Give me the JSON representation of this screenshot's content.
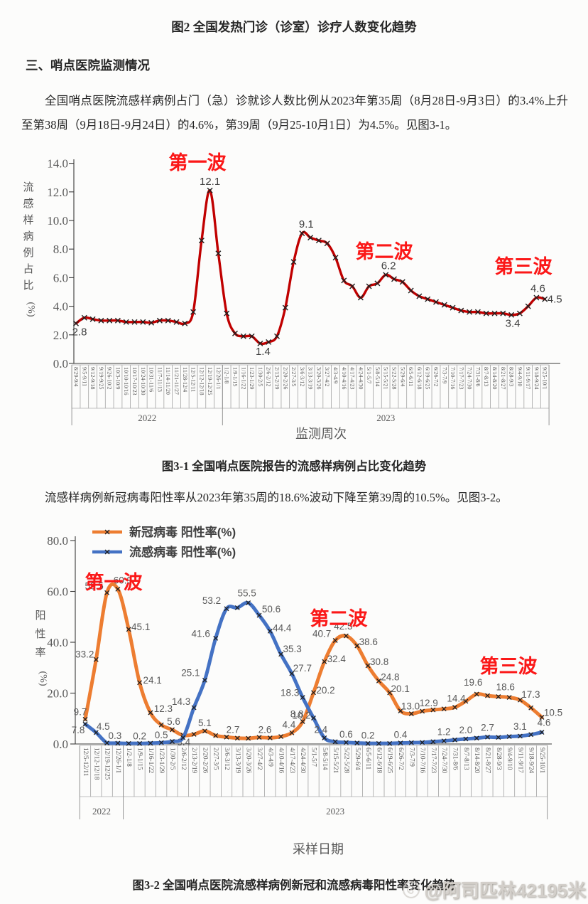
{
  "page": {
    "fig2_caption": "图2 全国发热门诊（诊室）诊疗人数变化趋势",
    "section_heading": "三、哨点医院监测情况",
    "para1": "全国哨点医院流感样病例占门（急）诊就诊人数比例从2023年第35周（8月28日-9月3日）的3.4%上升至第38周（9月18日-9月24日）的4.6%，第39周（9月25-10月1日）为4.5%。见图3-1。",
    "fig31_caption": "图3-1 全国哨点医院报告的流感样病例占比变化趋势",
    "para2": "流感样病例新冠病毒阳性率从2023年第35周的18.6%波动下降至第39周的10.5%。见图3-2。",
    "fig32_caption": "图3-2 全国哨点医院流感样病例新冠和流感病毒阳性率变化趋势",
    "watermark": "@阿司匹林42195米"
  },
  "chart_data": [
    {
      "id": "ili-percent-chart",
      "type": "line",
      "title": "",
      "xlabel": "监测周次",
      "ylabel": "流感样病例占比(%)",
      "ylim": [
        0,
        14
      ],
      "grid": false,
      "legend_position": "none",
      "ytick_vals": [
        0,
        2,
        4,
        6,
        8,
        10,
        12,
        14
      ],
      "ytick_labels": [
        "0.0",
        "2.0",
        "4.0",
        "6.0",
        "8.0",
        "10.0",
        "12.0",
        "14.0"
      ],
      "annotation_color": "#fb1818",
      "year_groups": [
        {
          "label": "2022",
          "count": 18
        },
        {
          "label": "2023",
          "count": 39
        }
      ],
      "categories": [
        "8/29-9/4",
        "9/5-9/11",
        "9/12-9/18",
        "9/19-9/25",
        "9/26-10/2",
        "10/3-10/9",
        "10/10-10/16",
        "10/17-10/23",
        "10/24-10/30",
        "10/31-11/6",
        "11/7-11/13",
        "11/14-11/20",
        "11/21-11/27",
        "11/28-12/4",
        "12/5-12/11",
        "12/12-12/18",
        "12/19-12/25",
        "12/26-1/1",
        "1/2-1/8",
        "1/9-1/15",
        "1/16-1/22",
        "1/23-1/29",
        "1/30-2/5",
        "2/6-2/12",
        "2/13-2/19",
        "2/20-2/26",
        "2/27-3/5",
        "3/6-3/12",
        "3/13-3/19",
        "3/20-3/26",
        "3/27-4/2",
        "4/3-4/9",
        "4/10-4/16",
        "4/17-4/23",
        "4/24-4/30",
        "5/1-5/7",
        "5/8-5/14",
        "5/15-5/21",
        "5/22-5/28",
        "5/29-6/4",
        "6/5-6/11",
        "6/12-6/18",
        "6/19-6/25",
        "6/26-7/2",
        "7/3-7/9",
        "7/10-7/16",
        "7/17-7/23",
        "7/24-7/30",
        "7/31-8/6",
        "8/7-8/13",
        "8/14-8/20",
        "8/21-8/27",
        "8/28-9/3",
        "9/4-9/10",
        "9/11-9/17",
        "9/18-9/24",
        "9/25-10/1"
      ],
      "series": [
        {
          "name": "流感样病例占比(%)",
          "color": "#c00000",
          "values": [
            2.8,
            3.2,
            3.1,
            3.0,
            3.0,
            3.0,
            2.9,
            2.9,
            2.9,
            2.85,
            3.0,
            3.0,
            2.9,
            2.8,
            3.6,
            8.6,
            12.1,
            7.7,
            3.5,
            2.1,
            1.9,
            1.9,
            1.4,
            1.5,
            1.9,
            3.9,
            7.1,
            9.1,
            8.8,
            8.6,
            8.4,
            7.4,
            5.8,
            5.4,
            4.6,
            5.4,
            5.6,
            6.2,
            5.9,
            5.7,
            5.1,
            4.7,
            4.5,
            4.3,
            4.1,
            3.9,
            3.7,
            3.6,
            3.6,
            3.5,
            3.5,
            3.5,
            3.4,
            3.5,
            4.0,
            4.6,
            4.5
          ],
          "labels": [
            {
              "i": 0,
              "t": "2.8",
              "dx": 5,
              "dy": 17
            },
            {
              "i": 16,
              "t": "12.1",
              "dx": 0,
              "dy": -8
            },
            {
              "i": 22,
              "t": "1.4",
              "dx": 4,
              "dy": 16
            },
            {
              "i": 27,
              "t": "9.1",
              "dx": 6,
              "dy": -8
            },
            {
              "i": 37,
              "t": "6.2",
              "dx": 4,
              "dy": -8
            },
            {
              "i": 52,
              "t": "3.4",
              "dx": 2,
              "dy": 17
            },
            {
              "i": 55,
              "t": "4.6",
              "dx": 2,
              "dy": -8
            },
            {
              "i": 56,
              "t": "4.5",
              "dx": 14,
              "dy": 5
            }
          ]
        }
      ],
      "annotations": [
        {
          "text": "第一波",
          "x": 278,
          "y": 38
        },
        {
          "text": "第二波",
          "x": 541,
          "y": 163
        },
        {
          "text": "第三波",
          "x": 737,
          "y": 184
        }
      ]
    },
    {
      "id": "positivity-chart",
      "type": "line",
      "title": "",
      "xlabel": "采样日期",
      "ylabel": "阳性率(%)",
      "ylim": [
        0,
        80
      ],
      "grid": false,
      "legend_position": "top-left",
      "ytick_vals": [
        0,
        20,
        40,
        60,
        80
      ],
      "ytick_labels": [
        "0.0",
        "20.0",
        "40.0",
        "60.0",
        "80.0"
      ],
      "annotation_color": "#fb1818",
      "year_groups": [
        {
          "label": "2022",
          "count": 4
        },
        {
          "label": "2023",
          "count": 39
        }
      ],
      "categories": [
        "12/5-12/11",
        "12/12-12/18",
        "12/19-12/25",
        "12/26-1/1",
        "1/2-1/8",
        "1/9-1/15",
        "1/16-1/22",
        "1/23-1/29",
        "1/30-2/5",
        "2/6-2/12",
        "2/13-2/19",
        "2/20-2/26",
        "2/27-3/5",
        "3/6-3/12",
        "3/13-3/19",
        "3/20-3/26",
        "3/27-4/2",
        "4/3-4/9",
        "4/10-4/16",
        "4/17-4/23",
        "4/24-4/30",
        "5/1-5/7",
        "5/8-5/14",
        "5/15-5/21",
        "5/22-5/28",
        "5/29-6/4",
        "6/5-6/11",
        "6/12-6/18",
        "6/19-6/25",
        "6/26-7/2",
        "7/3-7/9",
        "7/10-7/16",
        "7/17-7/23",
        "7/24-7/30",
        "7/31-8/6",
        "8/7-8/13",
        "8/14-8/20",
        "8/21-8/27",
        "8/28-9/3",
        "9/4-9/10",
        "9/11-9/17",
        "9/18-9/24",
        "9/25-10/1"
      ],
      "series": [
        {
          "name": "新冠病毒 阳性率(%)",
          "color": "#ED7D31",
          "values": [
            9.7,
            33.2,
            59.5,
            60.9,
            45.1,
            24.1,
            12.3,
            7.5,
            5.6,
            3.4,
            3.8,
            5.1,
            3.3,
            2.7,
            2.3,
            2.2,
            2.6,
            2.4,
            2.9,
            4.4,
            8.8,
            20.2,
            32.4,
            40.7,
            42.5,
            38.6,
            30.8,
            24.8,
            20.1,
            13.0,
            11.9,
            12.9,
            13.4,
            13.8,
            14.4,
            16.8,
            19.6,
            19.0,
            18.6,
            18.3,
            17.3,
            14.2,
            10.5
          ],
          "labels": [
            {
              "i": 0,
              "t": "9.7",
              "dx": -7,
              "dy": -6
            },
            {
              "i": 1,
              "t": "33.2",
              "dx": -16,
              "dy": -3
            },
            {
              "i": 2,
              "t": "59.5",
              "dx": -18,
              "dy": -5
            },
            {
              "i": 3,
              "t": "60.9",
              "dx": 7,
              "dy": -8
            },
            {
              "i": 4,
              "t": "45.1",
              "dx": 17,
              "dy": 1
            },
            {
              "i": 5,
              "t": "24.1",
              "dx": 18,
              "dy": 1
            },
            {
              "i": 6,
              "t": "12.3",
              "dx": 18,
              "dy": -1
            },
            {
              "i": 8,
              "t": "5.6",
              "dx": 2,
              "dy": -7
            },
            {
              "i": 9,
              "t": "3.4",
              "dx": 1,
              "dy": 14
            },
            {
              "i": 11,
              "t": "5.1",
              "dx": 0,
              "dy": -7
            },
            {
              "i": 13,
              "t": "2.7",
              "dx": 9,
              "dy": -6
            },
            {
              "i": 16,
              "t": "2.6",
              "dx": 8,
              "dy": -6
            },
            {
              "i": 19,
              "t": "4.4",
              "dx": -4,
              "dy": -7
            },
            {
              "i": 20,
              "t": "8.8",
              "dx": -8,
              "dy": -6
            },
            {
              "i": 21,
              "t": "20.2",
              "dx": 17,
              "dy": 1
            },
            {
              "i": 22,
              "t": "32.4",
              "dx": 17,
              "dy": 1
            },
            {
              "i": 23,
              "t": "40.7",
              "dx": -19,
              "dy": -5
            },
            {
              "i": 24,
              "t": "42.5",
              "dx": -4,
              "dy": -9
            },
            {
              "i": 25,
              "t": "38.6",
              "dx": 16,
              "dy": -1
            },
            {
              "i": 26,
              "t": "30.8",
              "dx": 16,
              "dy": -1
            },
            {
              "i": 27,
              "t": "24.8",
              "dx": 16,
              "dy": -1
            },
            {
              "i": 28,
              "t": "20.1",
              "dx": 15,
              "dy": -1
            },
            {
              "i": 29,
              "t": "13.0",
              "dx": 14,
              "dy": -2
            },
            {
              "i": 31,
              "t": "12.9",
              "dx": 9,
              "dy": -7
            },
            {
              "i": 34,
              "t": "14.4",
              "dx": 2,
              "dy": -8
            },
            {
              "i": 36,
              "t": "19.6",
              "dx": -5,
              "dy": -12
            },
            {
              "i": 38,
              "t": "18.6",
              "dx": 10,
              "dy": -9
            },
            {
              "i": 40,
              "t": "17.3",
              "dx": 15,
              "dy": -3
            },
            {
              "i": 42,
              "t": "10.5",
              "dx": 16,
              "dy": -2
            }
          ]
        },
        {
          "name": "流感病毒 阳性率(%)",
          "color": "#4472C4",
          "values": [
            7.8,
            4.5,
            0.4,
            0.3,
            0.2,
            0.2,
            0.3,
            0.5,
            1.0,
            2.5,
            14.3,
            25.1,
            41.6,
            53.2,
            53.6,
            55.5,
            50.6,
            44.4,
            35.3,
            27.7,
            18.3,
            10.2,
            2.4,
            0.9,
            0.6,
            0.4,
            0.2,
            0.2,
            0.2,
            0.4,
            0.5,
            0.6,
            0.9,
            1.2,
            1.6,
            2.0,
            2.3,
            2.7,
            2.6,
            2.9,
            3.1,
            3.7,
            4.6
          ],
          "labels": [
            {
              "i": 0,
              "t": "7.8",
              "dx": -10,
              "dy": 13
            },
            {
              "i": 1,
              "t": "4.5",
              "dx": 10,
              "dy": -4
            },
            {
              "i": 3,
              "t": "0.3",
              "dx": -4,
              "dy": -6
            },
            {
              "i": 5,
              "t": "0.2",
              "dx": 0,
              "dy": -6
            },
            {
              "i": 7,
              "t": "0.5",
              "dx": 0,
              "dy": -6
            },
            {
              "i": 10,
              "t": "14.3",
              "dx": -18,
              "dy": -4
            },
            {
              "i": 11,
              "t": "25.1",
              "dx": -20,
              "dy": -6
            },
            {
              "i": 12,
              "t": "41.6",
              "dx": -21,
              "dy": -2
            },
            {
              "i": 13,
              "t": "53.2",
              "dx": -21,
              "dy": -7
            },
            {
              "i": 15,
              "t": "55.5",
              "dx": -2,
              "dy": -9
            },
            {
              "i": 16,
              "t": "50.6",
              "dx": 17,
              "dy": -4
            },
            {
              "i": 17,
              "t": "44.4",
              "dx": 17,
              "dy": 0
            },
            {
              "i": 18,
              "t": "35.3",
              "dx": 16,
              "dy": -3
            },
            {
              "i": 19,
              "t": "27.7",
              "dx": 15,
              "dy": -3
            },
            {
              "i": 20,
              "t": "18.3",
              "dx": -18,
              "dy": -2
            },
            {
              "i": 21,
              "t": "10.2",
              "dx": -17,
              "dy": 1
            },
            {
              "i": 22,
              "t": "2.4",
              "dx": -5,
              "dy": -7
            },
            {
              "i": 24,
              "t": "0.6",
              "dx": 0,
              "dy": -7
            },
            {
              "i": 26,
              "t": "0.2",
              "dx": 0,
              "dy": -7
            },
            {
              "i": 29,
              "t": "0.4",
              "dx": 0,
              "dy": -7
            },
            {
              "i": 33,
              "t": "1.2",
              "dx": 0,
              "dy": -8
            },
            {
              "i": 35,
              "t": "2.0",
              "dx": 0,
              "dy": -8
            },
            {
              "i": 37,
              "t": "2.7",
              "dx": 0,
              "dy": -9
            },
            {
              "i": 40,
              "t": "3.1",
              "dx": 0,
              "dy": -9
            },
            {
              "i": 42,
              "t": "4.6",
              "dx": 3,
              "dy": -9
            }
          ]
        }
      ],
      "annotations": [
        {
          "text": "第一波",
          "x": 160,
          "y": 100
        },
        {
          "text": "第二波",
          "x": 477,
          "y": 151
        },
        {
          "text": "第三波",
          "x": 716,
          "y": 218
        }
      ]
    }
  ]
}
